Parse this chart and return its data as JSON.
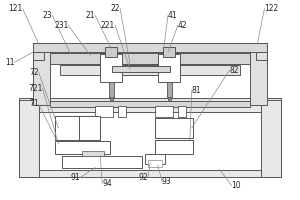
{
  "bg_color": "#ffffff",
  "line_color": "#555555",
  "line_width": 0.7,
  "font_size": 5.5,
  "text_color": "#222222",
  "lc_thin": "#777777"
}
